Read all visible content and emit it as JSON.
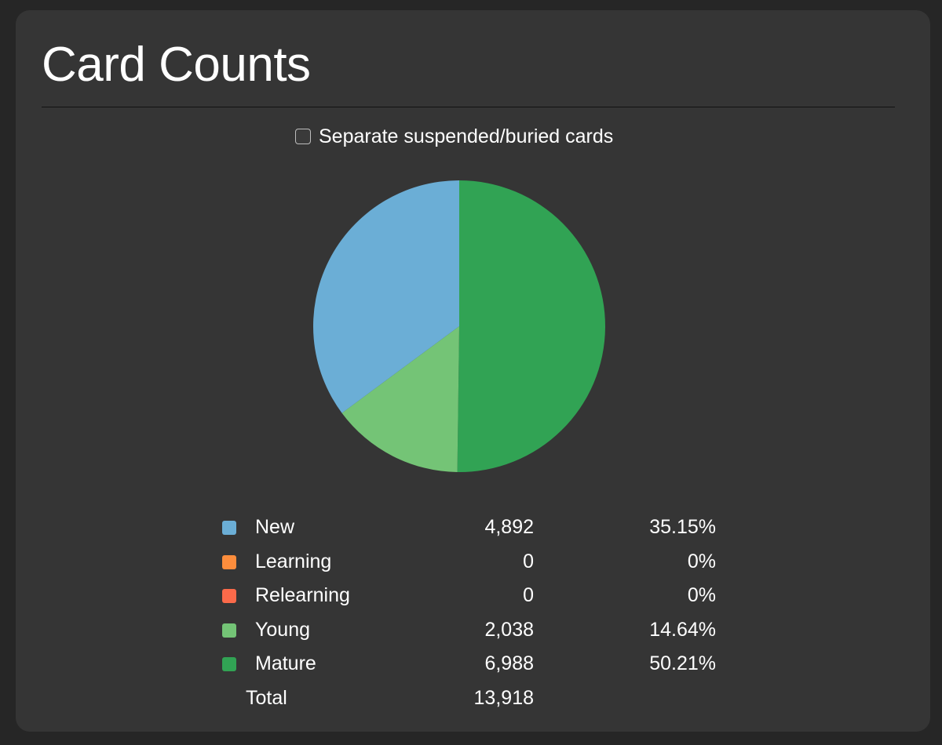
{
  "title": "Card Counts",
  "toggle": {
    "label": "Separate suspended/buried cards",
    "checked": false
  },
  "chart_data": {
    "type": "pie",
    "slices": [
      {
        "name": "New",
        "value": 4892,
        "count_label": "4,892",
        "percent_label": "35.15%",
        "color": "#6baed6"
      },
      {
        "name": "Learning",
        "value": 0,
        "count_label": "0",
        "percent_label": "0%",
        "color": "#fd8d3c"
      },
      {
        "name": "Relearning",
        "value": 0,
        "count_label": "0",
        "percent_label": "0%",
        "color": "#fb6a4a"
      },
      {
        "name": "Young",
        "value": 2038,
        "count_label": "2,038",
        "percent_label": "14.64%",
        "color": "#74c476"
      },
      {
        "name": "Mature",
        "value": 6988,
        "count_label": "6,988",
        "percent_label": "50.21%",
        "color": "#31a354"
      }
    ],
    "total": {
      "label": "Total",
      "value": 13918,
      "count_label": "13,918"
    }
  }
}
